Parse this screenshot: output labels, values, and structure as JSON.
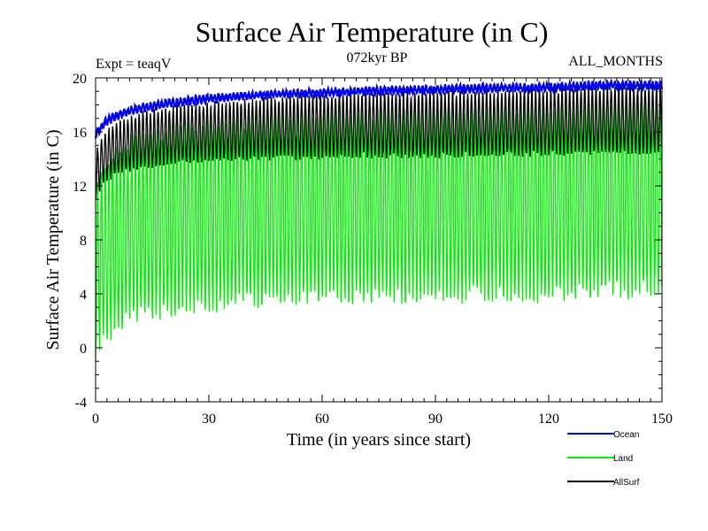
{
  "chart_data": {
    "type": "line",
    "title": "Surface Air Temperature (in C)",
    "subtitle_left": "Expt = teaqV",
    "subtitle_center": "072kyr BP",
    "subtitle_right": "ALL_MONTHS",
    "xlabel": "Time (in years since start)",
    "ylabel": "Surface Air Temperature (in C)",
    "xlim": [
      0,
      150
    ],
    "ylim": [
      -4,
      20
    ],
    "x_ticks": [
      0,
      30,
      60,
      90,
      120,
      150
    ],
    "x_tick_labels": [
      "0",
      "30",
      "60",
      "90",
      "120",
      "150"
    ],
    "y_ticks": [
      -4,
      0,
      4,
      8,
      12,
      16,
      20
    ],
    "y_tick_labels": [
      "-4",
      "0",
      "4",
      "8",
      "12",
      "16",
      "20"
    ],
    "grid": false,
    "legend_position": "bottom-right",
    "sampling": "monthly (seasonal cycle envelope)",
    "series": [
      {
        "name": "Land",
        "color": "#00ee00",
        "envelope_years": [
          0,
          2,
          5,
          10,
          20,
          30,
          40,
          50,
          60,
          75,
          90,
          105,
          120,
          135,
          150
        ],
        "annual_max": [
          11.5,
          13.5,
          14.5,
          15.5,
          16.3,
          16.7,
          17.0,
          17.3,
          17.5,
          17.7,
          17.8,
          17.9,
          18.0,
          18.2,
          18.3
        ],
        "annual_min": [
          -0.5,
          0.5,
          1.3,
          2.2,
          2.8,
          3.1,
          3.4,
          3.6,
          3.8,
          3.8,
          3.8,
          3.8,
          3.9,
          4.1,
          4.2
        ]
      },
      {
        "name": "AllSurf",
        "color": "#000000",
        "envelope_years": [
          0,
          2,
          5,
          10,
          20,
          30,
          40,
          50,
          60,
          75,
          90,
          105,
          120,
          135,
          150
        ],
        "annual_max": [
          14.5,
          15.8,
          16.5,
          17.2,
          17.8,
          18.1,
          18.3,
          18.5,
          18.7,
          18.8,
          18.9,
          19.0,
          19.1,
          19.3,
          19.3
        ],
        "annual_min": [
          11.0,
          12.2,
          12.8,
          13.3,
          13.7,
          13.9,
          14.0,
          14.1,
          14.2,
          14.2,
          14.2,
          14.3,
          14.4,
          14.5,
          14.5
        ]
      },
      {
        "name": "Ocean",
        "color": "#0000ee",
        "envelope_years": [
          0,
          2,
          5,
          10,
          20,
          30,
          40,
          50,
          60,
          75,
          90,
          105,
          120,
          135,
          150
        ],
        "annual_max": [
          16.0,
          16.8,
          17.4,
          17.9,
          18.4,
          18.7,
          18.9,
          19.0,
          19.1,
          19.3,
          19.4,
          19.5,
          19.5,
          19.7,
          19.7
        ],
        "annual_min": [
          15.6,
          16.3,
          16.9,
          17.4,
          17.9,
          18.2,
          18.5,
          18.6,
          18.7,
          18.8,
          18.9,
          19.0,
          19.1,
          19.2,
          19.2
        ]
      }
    ],
    "legend": [
      {
        "name": "Ocean",
        "color": "#0000ee"
      },
      {
        "name": "Land",
        "color": "#00ee00"
      },
      {
        "name": "AllSurf",
        "color": "#000000"
      }
    ]
  }
}
